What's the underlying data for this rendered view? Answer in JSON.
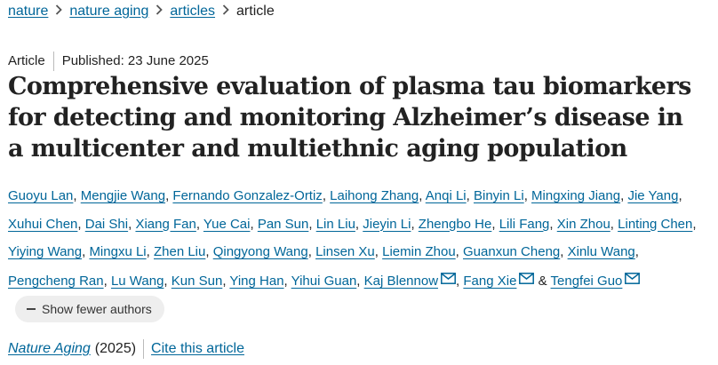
{
  "breadcrumb": {
    "items": [
      "nature",
      "nature aging",
      "articles"
    ],
    "current": "article"
  },
  "article": {
    "type": "Article",
    "published": "Published: 23 June 2025",
    "title": "Comprehensive evaluation of plasma tau biomarkers for detecting and monitoring Alzheimer’s disease in a multicenter and multiethnic aging population"
  },
  "authors": {
    "names": [
      "Guoyu Lan",
      "Mengjie Wang",
      "Fernando Gonzalez-Ortiz",
      "Laihong Zhang",
      "Anqi Li",
      "Binyin Li",
      "Mingxing Jiang",
      "Jie Yang",
      "Xuhui Chen",
      "Dai Shi",
      "Xiang Fan",
      "Yue Cai",
      "Pan Sun",
      "Lin Liu",
      "Jieyin Li",
      "Zhengbo He",
      "Lili Fang",
      "Xin Zhou",
      "Linting Chen",
      "Yiying Wang",
      "Mingxu Li",
      "Zhen Liu",
      "Qingyong Wang",
      "Linsen Xu",
      "Liemin Zhou",
      "Guanxun Cheng",
      "Xinlu Wang",
      "Pengcheng Ran",
      "Lu Wang",
      "Kun Sun",
      "Ying Han",
      "Yihui Guan",
      "Kaj Blennow",
      "Fang Xie",
      "Tengfei Guo"
    ],
    "ampersand": "&",
    "show_fewer_label": "Show fewer authors"
  },
  "citation": {
    "journal": "Nature Aging",
    "year": "(2025)",
    "cite_label": "Cite this article"
  },
  "icons": {
    "mail": "envelope-icon",
    "minus": "minus-icon",
    "separator": "chevron-right-icon"
  },
  "colors": {
    "link": "#006699",
    "text": "#222222",
    "button_bg": "#eeeeee"
  }
}
